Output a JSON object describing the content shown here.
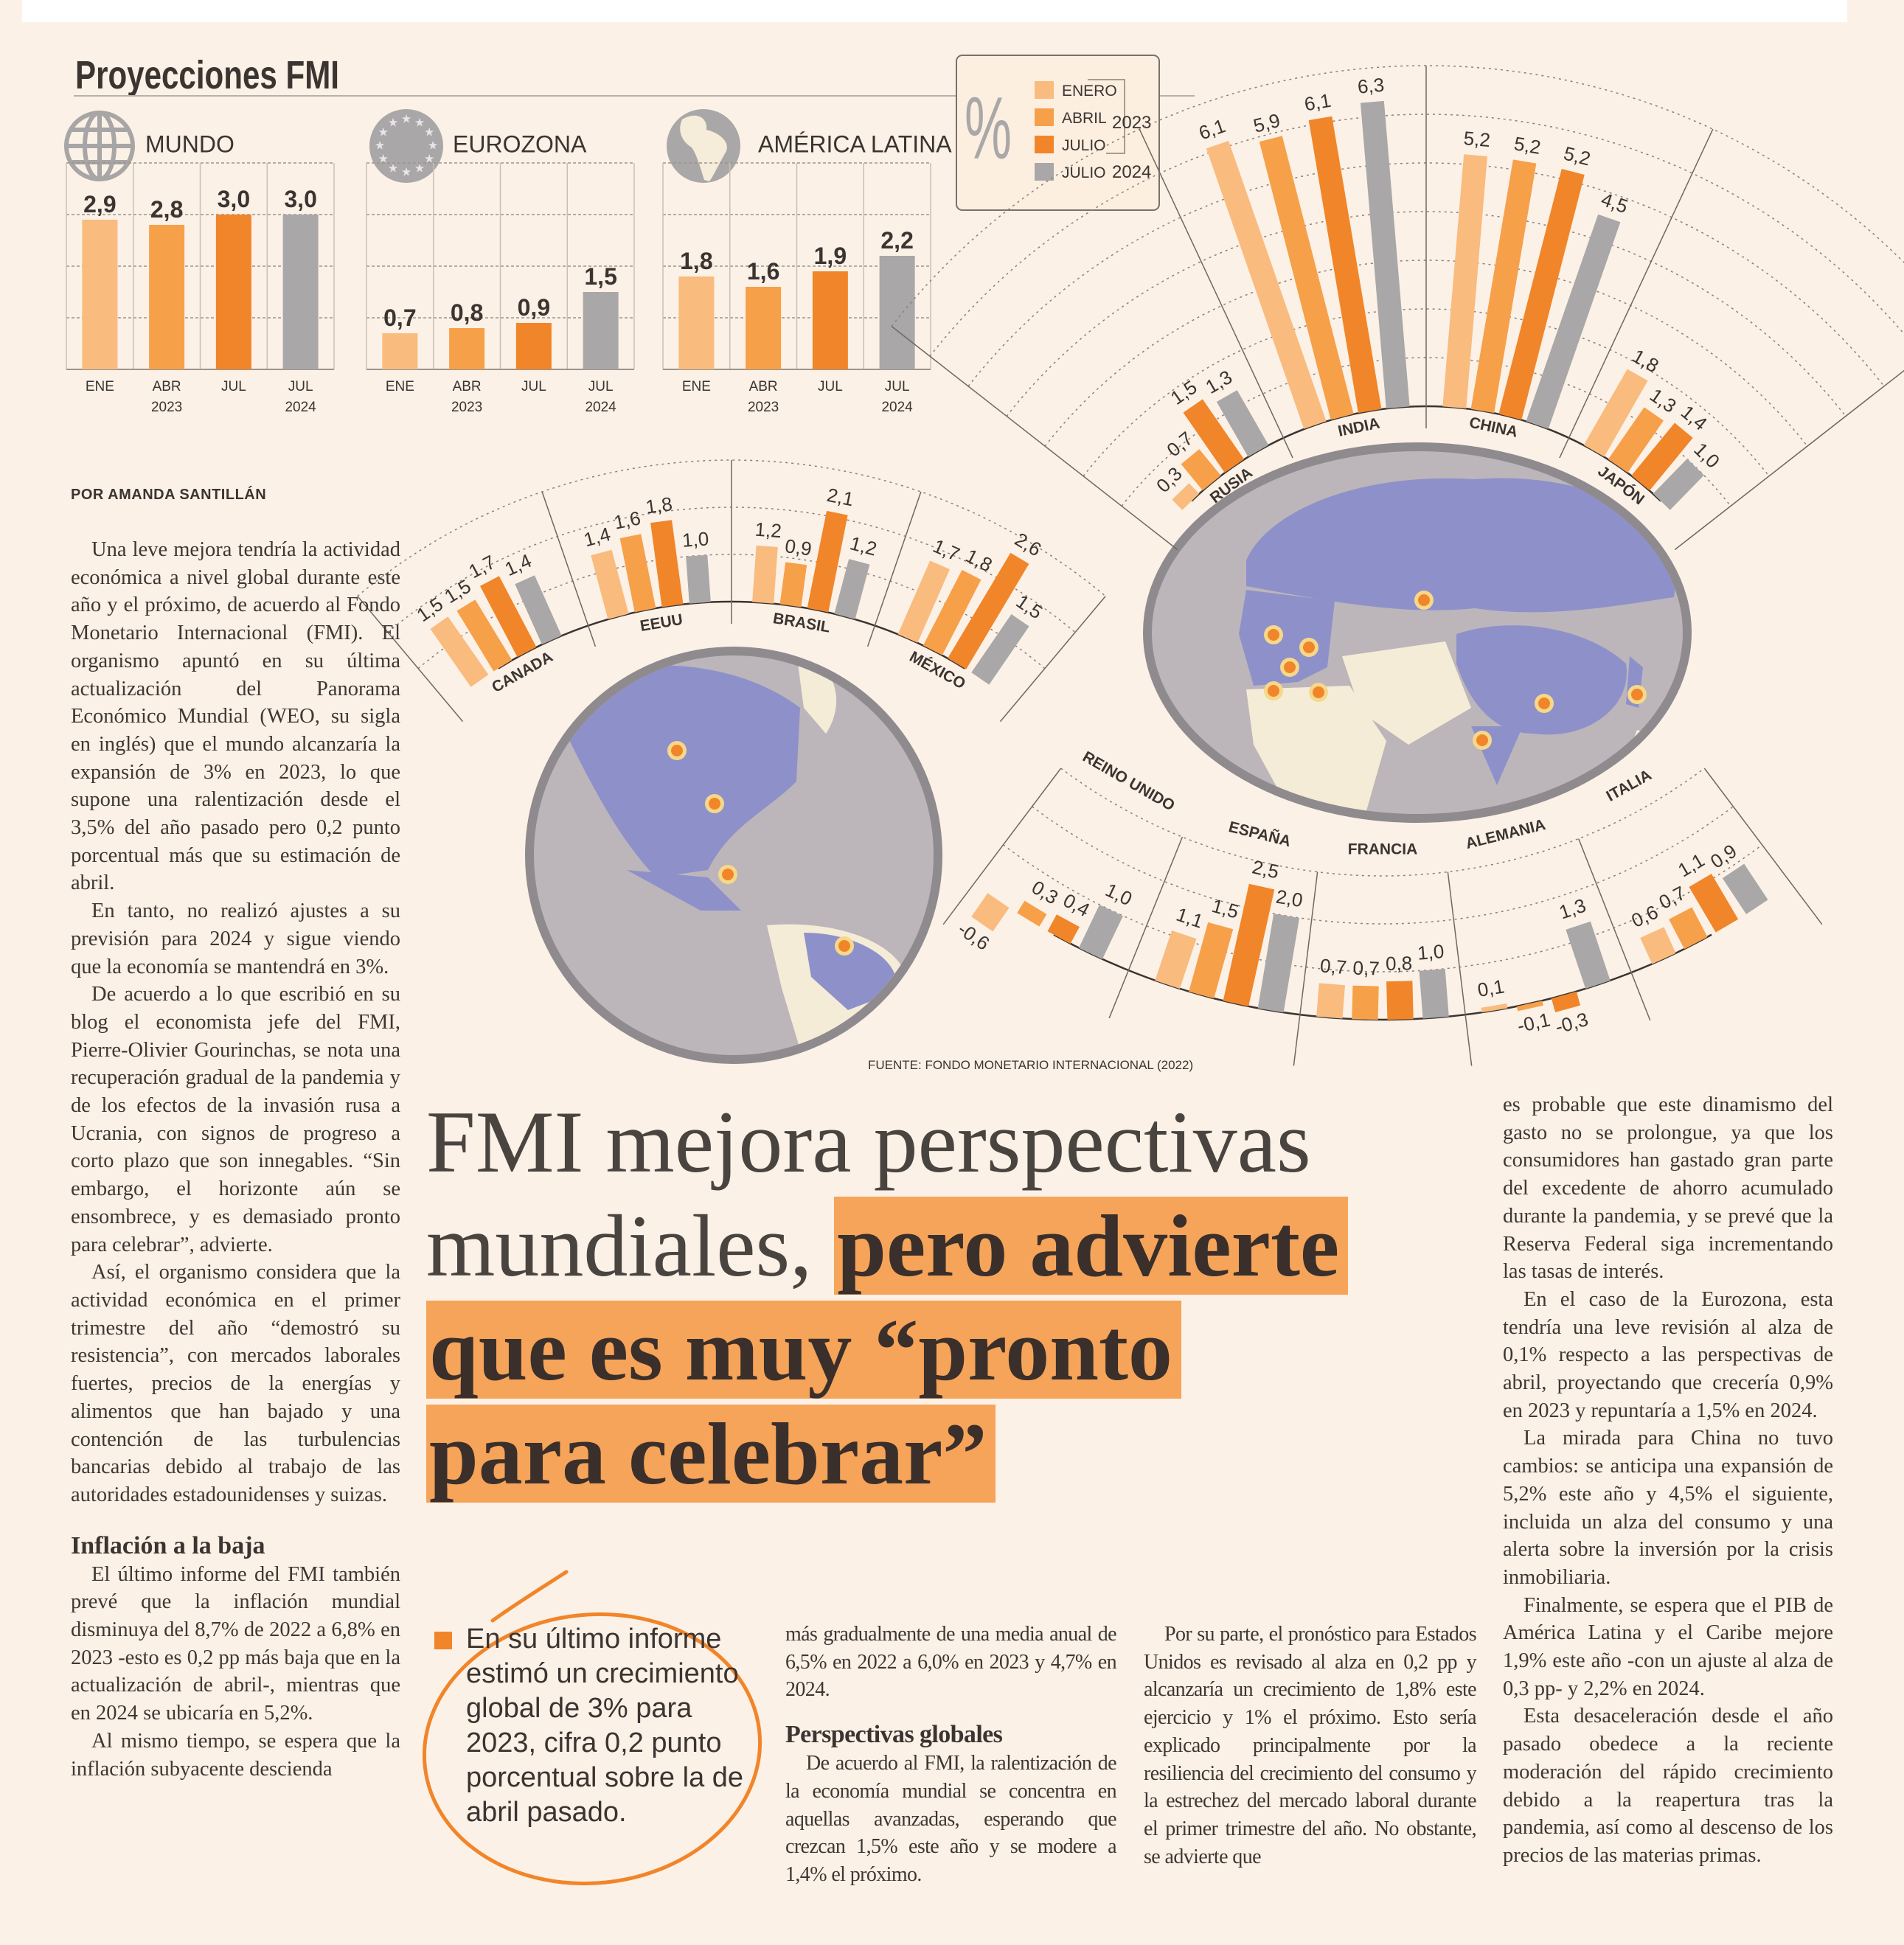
{
  "infographic": {
    "title": "Proyecciones FMI",
    "legend": {
      "symbol": "%",
      "items": [
        {
          "label": "ENERO",
          "color": "#f9bb7e"
        },
        {
          "label": "ABRIL",
          "color": "#f7a04a"
        },
        {
          "label": "JULIO",
          "color": "#f1852a"
        },
        {
          "label": "JULIO",
          "color": "#a9a7a7"
        }
      ],
      "year_2023": "2023",
      "year_2024": "2024"
    },
    "axis_labels": [
      "ENE",
      "ABR",
      "JUL",
      "JUL"
    ],
    "year_labels": [
      "2023",
      "2024"
    ],
    "regions": [
      {
        "name": "MUNDO",
        "icon": "globe-grid-icon",
        "values": [
          "2,9",
          "2,8",
          "3,0",
          "3,0"
        ]
      },
      {
        "name": "EUROZONA",
        "icon": "eu-stars-icon",
        "values": [
          "0,7",
          "0,8",
          "0,9",
          "1,5"
        ]
      },
      {
        "name": "AMÉRICA LATINA",
        "icon": "latin-america-globe-icon",
        "values": [
          "1,8",
          "1,6",
          "1,9",
          "2,2"
        ]
      }
    ],
    "americas": [
      {
        "country": "CANADA",
        "values": [
          "1,5",
          "1,5",
          "1,7",
          "1,4"
        ]
      },
      {
        "country": "EEUU",
        "values": [
          "1,4",
          "1,6",
          "1,8",
          "1,0"
        ]
      },
      {
        "country": "BRASIL",
        "values": [
          "1,2",
          "0,9",
          "2,1",
          "1,2"
        ]
      },
      {
        "country": "MÉXICO",
        "values": [
          "1,7",
          "1,8",
          "2,6",
          "1,5"
        ]
      }
    ],
    "asia": [
      {
        "country": "RUSIA",
        "values": [
          "0,3",
          "0,7",
          "1,5",
          "1,3"
        ]
      },
      {
        "country": "INDIA",
        "values": [
          "6,1",
          "5,9",
          "6,1",
          "6,3"
        ]
      },
      {
        "country": "CHINA",
        "values": [
          "5,2",
          "5,2",
          "5,2",
          "4,5"
        ]
      },
      {
        "country": "JAPÓN",
        "values": [
          "1,8",
          "1,3",
          "1,4",
          "1,0"
        ]
      }
    ],
    "europe": [
      {
        "country": "REINO UNIDO",
        "values": [
          "-0,6",
          "0,3",
          "0,4",
          "1,0"
        ]
      },
      {
        "country": "ESPAÑA",
        "values": [
          "1,1",
          "1,5",
          "2,5",
          "2,0"
        ]
      },
      {
        "country": "FRANCIA",
        "values": [
          "0,7",
          "0,7",
          "0,8",
          "1,0"
        ]
      },
      {
        "country": "ALEMANIA",
        "values": [
          "0,1",
          "-0,1",
          "-0,3",
          "1,3"
        ]
      },
      {
        "country": "ITALIA",
        "values": [
          "0,6",
          "0,7",
          "1,1",
          "0,9"
        ]
      }
    ],
    "source": "FUENTE: FONDO MONETARIO INTERNACIONAL (2022)"
  },
  "article": {
    "byline": "POR AMANDA SANTILLÁN",
    "headline": {
      "plain_1": "FMI mejora perspectivas",
      "plain_2": "mundiales, ",
      "highlight_1": "pero advierte",
      "highlight_2": "que es muy “pronto",
      "highlight_3": "para celebrar”"
    },
    "col1": [
      "Una leve mejora tendría la actividad económica a nivel global durante este año y el próximo, de acuerdo al Fondo Monetario Internacional (FMI). El organismo apuntó en su última actualización del Panorama Económico Mundial (WEO, su sigla en inglés) que el mundo alcanzaría la expansión de 3% en 2023, lo que supone una ralentización desde el 3,5% del año pasado pero 0,2 punto porcentual más que su estimación de abril.",
      "En tanto, no realizó ajustes a su previsión para 2024 y sigue viendo que la economía se mantendrá en 3%.",
      "De acuerdo a lo que escribió en su blog el economista jefe del FMI, Pierre-Olivier Gourinchas, se nota una recuperación gradual de la pandemia y de los efectos de la invasión rusa a Ucrania, con signos de progreso a corto plazo que son innegables. “Sin embargo, el horizonte aún se ensombrece, y es demasiado pronto para celebrar”, advierte.",
      "Así, el organismo considera que la actividad económica en el primer trimestre del año “demostró su resistencia”, con mercados laborales fuertes, precios de la energías y alimentos que han bajado y una contención de las turbulencias bancarias debido al trabajo de las autoridades estadounidenses y suizas."
    ],
    "subhead_1": "Inflación a la baja",
    "col1b": [
      "El último informe del FMI también prevé que la inflación mundial disminuya del 8,7% de 2022 a 6,8% en 2023 -esto es 0,2 pp más baja que en la actualización de abril-, mientras que en 2024 se ubicaría en 5,2%.",
      "Al mismo tiempo, se espera que la inflación subyacente descienda"
    ],
    "callout": "En su último informe estimó un crecimiento global de 3% para 2023, cifra 0,2 punto porcentual sobre la de abril pasado.",
    "col3_lead": "más gradualmente de una media anual de 6,5% en 2022 a 6,0% en 2023 y 4,7% en 2024.",
    "subhead_2": "Perspectivas globales",
    "col3_body": "De acuerdo al FMI, la ralentización de la economía mundial se concentra en aquellas avanzadas, esperando que crezcan 1,5% este año y se modere a 1,4% el próximo.",
    "col4": "Por su parte, el pronóstico para Estados Unidos es revisado al alza en 0,2 pp y alcanzaría un crecimiento de 1,8% este ejercicio y 1% el próximo. Esto sería explicado principalmente por la resiliencia del crecimiento del consumo y la estrechez del mercado laboral durante el primer trimestre del año. No obstante, se advierte que",
    "col5": [
      "es probable que este dinamismo del gasto no se prolongue, ya que los consumidores han gastado gran parte del excedente de ahorro acumulado durante la pandemia, y se prevé que la Reserva Federal siga incrementando las tasas de interés.",
      "En el caso de la Eurozona, esta tendría una leve revisión al alza de 0,1% respecto a las perspectivas de abril, proyectando que crecería 0,9% en 2023 y repuntaría a 1,5% en 2024.",
      "La mirada para China no tuvo cambios: se anticipa una expansión de 5,2% este año y 4,5% el siguiente, incluida un alza del consumo y una alerta sobre la inversión por la crisis inmobiliaria.",
      "Finalmente, se espera que el PIB de América Latina y el Caribe mejore 1,9% este año -con un ajuste al alza de 0,3 pp- y 2,2% en 2024.",
      "Esta desaceleración desde el año pasado obedece a la reciente moderación del rápido crecimiento debido a la reapertura tras la pandemia, así como al descenso de los precios de las materias primas."
    ]
  }
}
